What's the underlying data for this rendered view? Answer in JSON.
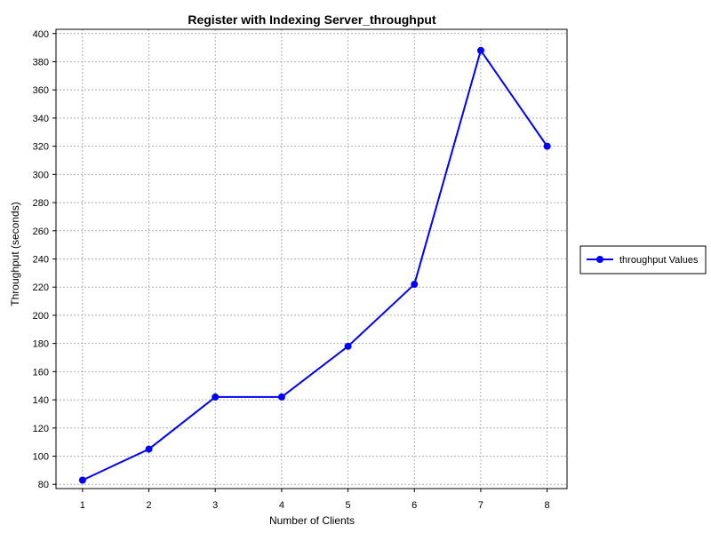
{
  "chart_data": {
    "type": "line",
    "title": "Register with Indexing Server_throughput",
    "xlabel": "Number of Clients",
    "ylabel": "Throughput (seconds)",
    "x": [
      1,
      2,
      3,
      4,
      5,
      6,
      7,
      8
    ],
    "xticks": [
      "1",
      "2",
      "3",
      "4",
      "5",
      "6",
      "7",
      "8"
    ],
    "xlim": [
      0.6,
      8.3
    ],
    "ylim": [
      77,
      403
    ],
    "yticks": [
      "80",
      "100",
      "120",
      "140",
      "160",
      "180",
      "200",
      "220",
      "240",
      "260",
      "280",
      "300",
      "320",
      "340",
      "360",
      "380",
      "400"
    ],
    "grid": true,
    "legend_position": "right",
    "series": [
      {
        "name": "throughput Values",
        "values": [
          83,
          105,
          142,
          142,
          178,
          222,
          388,
          320
        ],
        "color": "#0000ff",
        "marker": "circle"
      }
    ]
  }
}
